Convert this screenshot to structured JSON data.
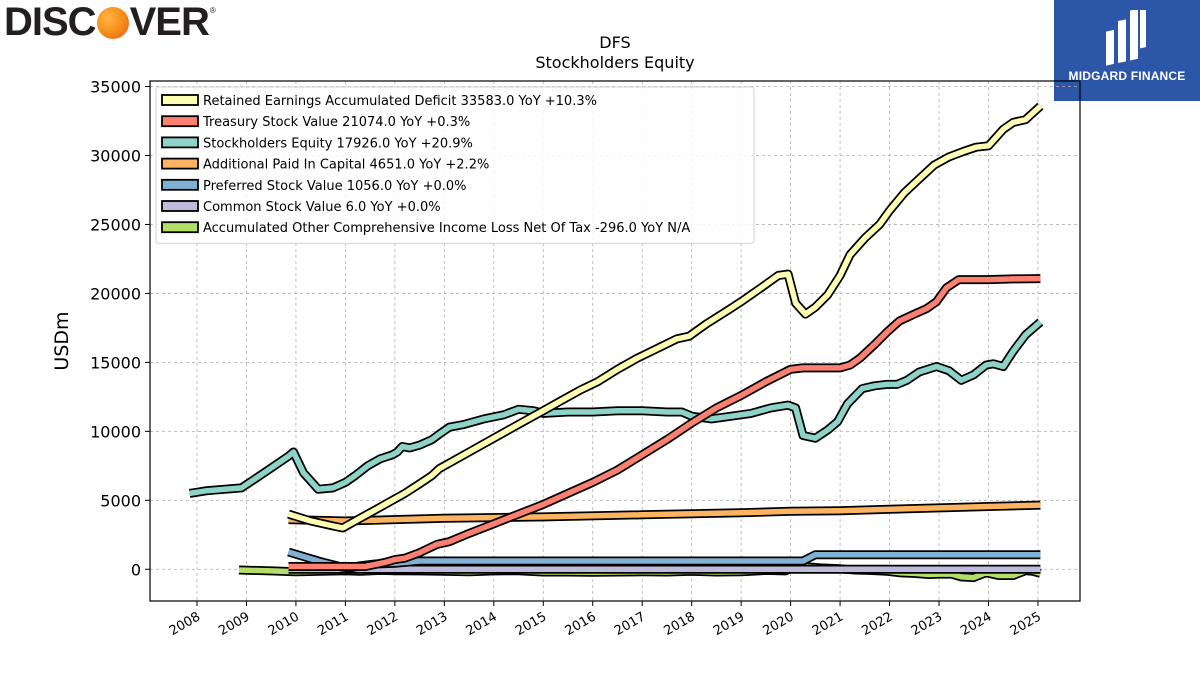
{
  "brand": {
    "left_logo": {
      "text_before": "DISC",
      "text_after": "VER",
      "registered": "®"
    },
    "right_logo": {
      "text": "MIDGARD FINANCE",
      "bg_color": "#2c56a8"
    }
  },
  "chart_data": {
    "type": "line",
    "title": "DFS",
    "subtitle": "Stockholders  Equity",
    "xlabel": "",
    "ylabel": "USDm",
    "xlim": [
      2007.05,
      2025.85
    ],
    "ylim": [
      -2300,
      35400
    ],
    "yticks": [
      0,
      5000,
      10000,
      15000,
      20000,
      25000,
      30000,
      35000
    ],
    "xticks": [
      2008,
      2009,
      2010,
      2011,
      2012,
      2013,
      2014,
      2015,
      2016,
      2017,
      2018,
      2019,
      2020,
      2021,
      2022,
      2023,
      2024,
      2025
    ],
    "grid": true,
    "legend_position": "top-left",
    "series": [
      {
        "name": "Retained Earnings Accumulated Deficit",
        "legend": "Retained Earnings Accumulated Deficit  33583.0 YoY +10.3%",
        "color": "#ffffb3",
        "x": [
          2009.85,
          2010.3,
          2010.8,
          2010.95,
          2011.3,
          2011.6,
          2011.9,
          2012.2,
          2012.5,
          2012.75,
          2012.9,
          2013.1,
          2013.5,
          2014.0,
          2014.5,
          2015.0,
          2015.4,
          2015.75,
          2016.1,
          2016.5,
          2016.9,
          2017.3,
          2017.7,
          2017.95,
          2018.3,
          2018.7,
          2019.0,
          2019.4,
          2019.75,
          2019.95,
          2020.1,
          2020.3,
          2020.5,
          2020.75,
          2021.0,
          2021.2,
          2021.5,
          2021.8,
          2022.0,
          2022.3,
          2022.6,
          2022.9,
          2023.2,
          2023.5,
          2023.75,
          2024.0,
          2024.3,
          2024.5,
          2024.75,
          2025.05
        ],
        "values": [
          4000,
          3500,
          3100,
          3000,
          3700,
          4300,
          4900,
          5500,
          6200,
          6800,
          7300,
          7700,
          8500,
          9500,
          10500,
          11500,
          12300,
          13000,
          13600,
          14500,
          15300,
          16000,
          16700,
          16900,
          17800,
          18700,
          19400,
          20400,
          21300,
          21400,
          19300,
          18500,
          19000,
          19900,
          21300,
          22800,
          24000,
          25000,
          26000,
          27300,
          28300,
          29300,
          29900,
          30300,
          30600,
          30700,
          31900,
          32400,
          32600,
          33583
        ]
      },
      {
        "name": "Treasury Stock Value",
        "legend": "Treasury Stock Value  21074.0 YoY +0.3%",
        "color": "#fb8072",
        "x": [
          2009.85,
          2010.5,
          2011.0,
          2011.4,
          2011.8,
          2012.0,
          2012.2,
          2012.5,
          2012.85,
          2013.1,
          2013.5,
          2014.0,
          2014.5,
          2015.0,
          2015.5,
          2016.0,
          2016.5,
          2017.0,
          2017.5,
          2018.0,
          2018.5,
          2019.0,
          2019.5,
          2020.0,
          2020.25,
          2020.5,
          2020.75,
          2021.0,
          2021.2,
          2021.4,
          2021.7,
          2021.95,
          2022.2,
          2022.5,
          2022.75,
          2022.95,
          2023.15,
          2023.4,
          2023.7,
          2024.0,
          2024.5,
          2025.05
        ],
        "values": [
          200,
          200,
          200,
          200,
          500,
          700,
          800,
          1200,
          1800,
          2000,
          2600,
          3300,
          4000,
          4700,
          5500,
          6300,
          7200,
          8300,
          9400,
          10600,
          11700,
          12600,
          13600,
          14500,
          14600,
          14600,
          14600,
          14600,
          14800,
          15300,
          16300,
          17200,
          18000,
          18500,
          18900,
          19400,
          20400,
          21000,
          21000,
          21000,
          21050,
          21074
        ]
      },
      {
        "name": "Stockholders Equity",
        "legend": "Stockholders Equity  17926.0 YoY +20.9%",
        "color": "#8dd3c7",
        "x": [
          2007.85,
          2008.2,
          2008.9,
          2009.4,
          2009.85,
          2009.95,
          2010.15,
          2010.45,
          2010.75,
          2011.0,
          2011.2,
          2011.45,
          2011.7,
          2011.95,
          2012.05,
          2012.15,
          2012.3,
          2012.5,
          2012.75,
          2012.9,
          2013.1,
          2013.4,
          2013.8,
          2014.2,
          2014.5,
          2014.8,
          2015.0,
          2015.5,
          2016.0,
          2016.5,
          2017.0,
          2017.5,
          2017.8,
          2018.0,
          2018.4,
          2018.8,
          2019.2,
          2019.6,
          2019.95,
          2020.1,
          2020.25,
          2020.5,
          2020.75,
          2020.95,
          2021.15,
          2021.45,
          2021.7,
          2021.95,
          2022.15,
          2022.35,
          2022.6,
          2022.95,
          2023.2,
          2023.45,
          2023.7,
          2023.95,
          2024.1,
          2024.3,
          2024.5,
          2024.75,
          2025.05
        ],
        "values": [
          5500,
          5700,
          5900,
          7100,
          8200,
          8500,
          7000,
          5800,
          5900,
          6300,
          6800,
          7500,
          8000,
          8300,
          8500,
          8900,
          8800,
          9000,
          9400,
          9800,
          10300,
          10500,
          10900,
          11200,
          11600,
          11500,
          11300,
          11400,
          11400,
          11500,
          11500,
          11400,
          11400,
          11100,
          10900,
          11100,
          11300,
          11700,
          11900,
          11700,
          9700,
          9500,
          10100,
          10700,
          12000,
          13100,
          13300,
          13400,
          13400,
          13700,
          14300,
          14700,
          14400,
          13700,
          14100,
          14800,
          14900,
          14700,
          15800,
          17000,
          17926
        ]
      },
      {
        "name": "Additional Paid In Capital",
        "legend": "Additional Paid In Capital  4651.0 YoY +2.2%",
        "color": "#fdb462",
        "x": [
          2009.85,
          2011.0,
          2013.0,
          2015.0,
          2017.0,
          2019.0,
          2020.0,
          2021.0,
          2022.0,
          2023.0,
          2024.0,
          2025.05
        ],
        "values": [
          3600,
          3500,
          3700,
          3800,
          3950,
          4100,
          4200,
          4250,
          4350,
          4450,
          4550,
          4651
        ]
      },
      {
        "name": "Preferred Stock Value",
        "legend": "Preferred Stock Value  1056.0 YoY +0.0%",
        "color": "#80b1d3",
        "x": [
          2009.85,
          2010.5,
          2010.95,
          2011.1,
          2011.3,
          2011.6,
          2012.0,
          2012.5,
          2013.0,
          2015.0,
          2017.0,
          2019.0,
          2020.0,
          2020.25,
          2020.5,
          2021.0,
          2023.0,
          2025.05
        ],
        "values": [
          1250,
          550,
          150,
          100,
          250,
          380,
          430,
          600,
          600,
          600,
          600,
          600,
          600,
          600,
          1056,
          1056,
          1056,
          1056
        ]
      },
      {
        "name": "Common Stock Value",
        "legend": "Common Stock Value  6.0 YoY +0.0%",
        "color": "#bebada",
        "x": [
          2009.85,
          2025.05
        ],
        "values": [
          6,
          6
        ]
      },
      {
        "name": "Accumulated Other Comprehensive Income Loss Net Of Tax",
        "legend": "Accumulated Other Comprehensive Income Loss Net Of Tax  -296.0 YoY N/A",
        "color": "#b3de69",
        "x": [
          2008.85,
          2009.5,
          2010.0,
          2010.5,
          2011.0,
          2011.3,
          2011.7,
          2012.0,
          2012.5,
          2013.0,
          2013.5,
          2014.0,
          2014.5,
          2015.0,
          2015.5,
          2016.0,
          2016.5,
          2017.0,
          2017.5,
          2018.0,
          2018.5,
          2019.0,
          2019.5,
          2019.9,
          2020.05,
          2020.3,
          2020.6,
          2020.95,
          2021.3,
          2021.6,
          2021.95,
          2022.2,
          2022.5,
          2022.8,
          2023.0,
          2023.25,
          2023.45,
          2023.7,
          2023.95,
          2024.2,
          2024.5,
          2024.75,
          2024.9,
          2025.05
        ],
        "values": [
          -50,
          -120,
          -180,
          -150,
          -100,
          -150,
          -80,
          -100,
          -120,
          -150,
          -180,
          -120,
          -100,
          -200,
          -200,
          -220,
          -200,
          -180,
          -200,
          -150,
          -200,
          -180,
          -80,
          -120,
          150,
          180,
          100,
          50,
          -50,
          -80,
          -150,
          -250,
          -300,
          -380,
          -350,
          -350,
          -550,
          -600,
          -250,
          -450,
          -450,
          -100,
          -150,
          -296
        ]
      }
    ]
  }
}
